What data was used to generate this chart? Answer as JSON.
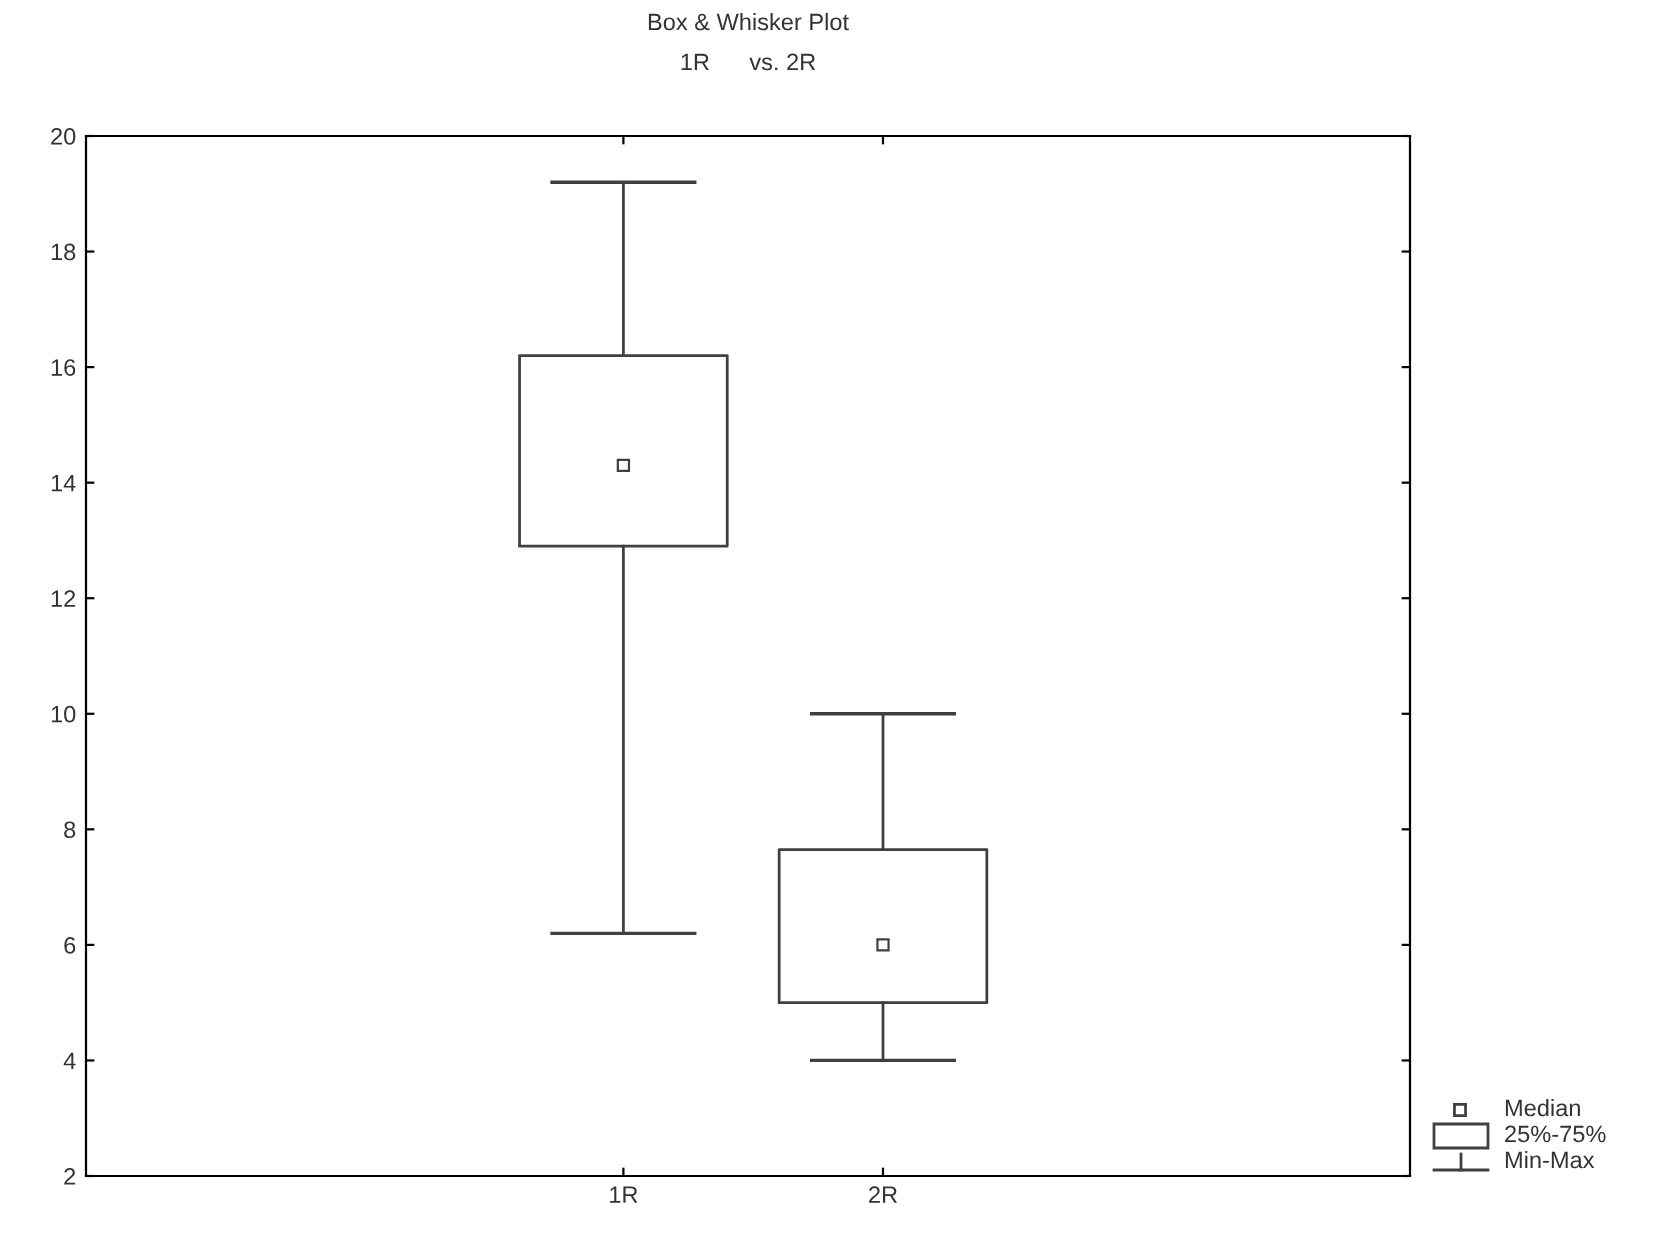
{
  "chart_data": {
    "type": "box",
    "title": "Box & Whisker Plot",
    "subtitle": "1R      vs. 2R",
    "categories": [
      "1R",
      "2R"
    ],
    "boxes": [
      {
        "low": 6.2,
        "q1": 12.9,
        "median": 14.3,
        "q3": 16.2,
        "high": 19.2
      },
      {
        "low": 4.0,
        "q1": 5.0,
        "median": 6.0,
        "q3": 7.65,
        "high": 10.0
      }
    ],
    "annotations": [
      "Median",
      "25%-75%",
      "Min-Max"
    ],
    "ylim": [
      2,
      20
    ],
    "yticks": [
      2,
      4,
      6,
      8,
      10,
      12,
      14,
      16,
      18,
      20
    ],
    "grid": false,
    "marker": "square"
  }
}
